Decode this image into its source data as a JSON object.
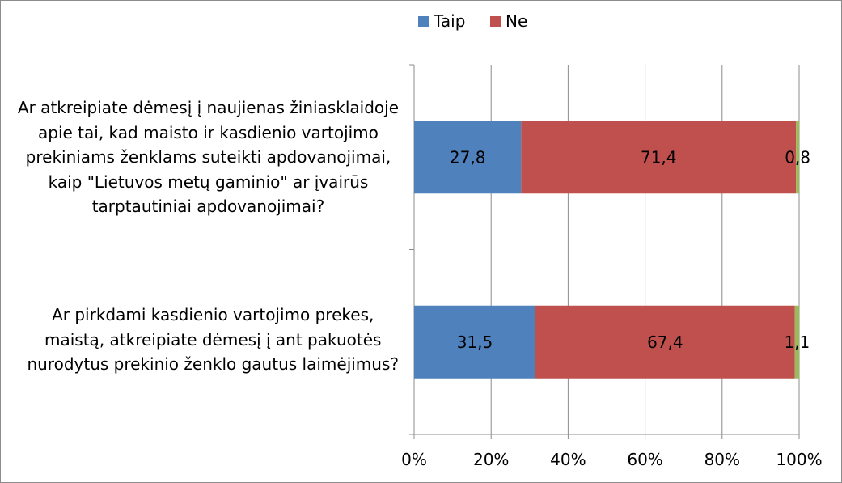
{
  "colors": {
    "taip": "#4f81bd",
    "ne": "#c0504d",
    "other": "#9bbb59",
    "grid": "#8c8c8c"
  },
  "legend": {
    "taip": "Taip",
    "ne": "Ne"
  },
  "questions": [
    "Ar atkreipiate dėmesį į naujienas žiniasklaidoje\napie tai, kad maisto ir kasdienio vartojimo\nprekiniams ženklams suteikti apdovanojimai,\nkaip \"Lietuvos metų gaminio\" ar įvairūs\ntarptautiniai apdovanojimai?",
    "Ar pirkdami kasdienio vartojimo prekes,\nmaistą, atkreipiate dėmesį į ant pakuotės\nnurodytus prekinio ženklo gautus laimėjimus?"
  ],
  "chart_data": {
    "type": "bar",
    "orientation": "horizontal",
    "stacked": "percent",
    "categories": [
      "Ar atkreipiate dėmesį į naujienas žiniasklaidoje apie tai, kad maisto ir kasdienio vartojimo prekiniams ženklams suteikti apdovanojimai, kaip \"Lietuvos metų gaminio\" ar įvairūs tarptautiniai apdovanojimai?",
      "Ar pirkdami kasdienio vartojimo prekes, maistą, atkreipiate dėmesį į ant pakuotės nurodytus prekinio ženklo gautus laimėjimus?"
    ],
    "series": [
      {
        "name": "Taip",
        "values": [
          27.8,
          31.5
        ],
        "labels": [
          "27,8",
          "31,5"
        ]
      },
      {
        "name": "Ne",
        "values": [
          71.4,
          67.4
        ],
        "labels": [
          "71,4",
          "67,4"
        ]
      },
      {
        "values": [
          0.8,
          1.1
        ],
        "labels": [
          "0,8",
          "1,1"
        ]
      }
    ],
    "xlim": [
      0,
      100
    ],
    "xticks": [
      "0%",
      "20%",
      "40%",
      "60%",
      "80%",
      "100%"
    ],
    "grid": true,
    "legend_position": "top"
  }
}
